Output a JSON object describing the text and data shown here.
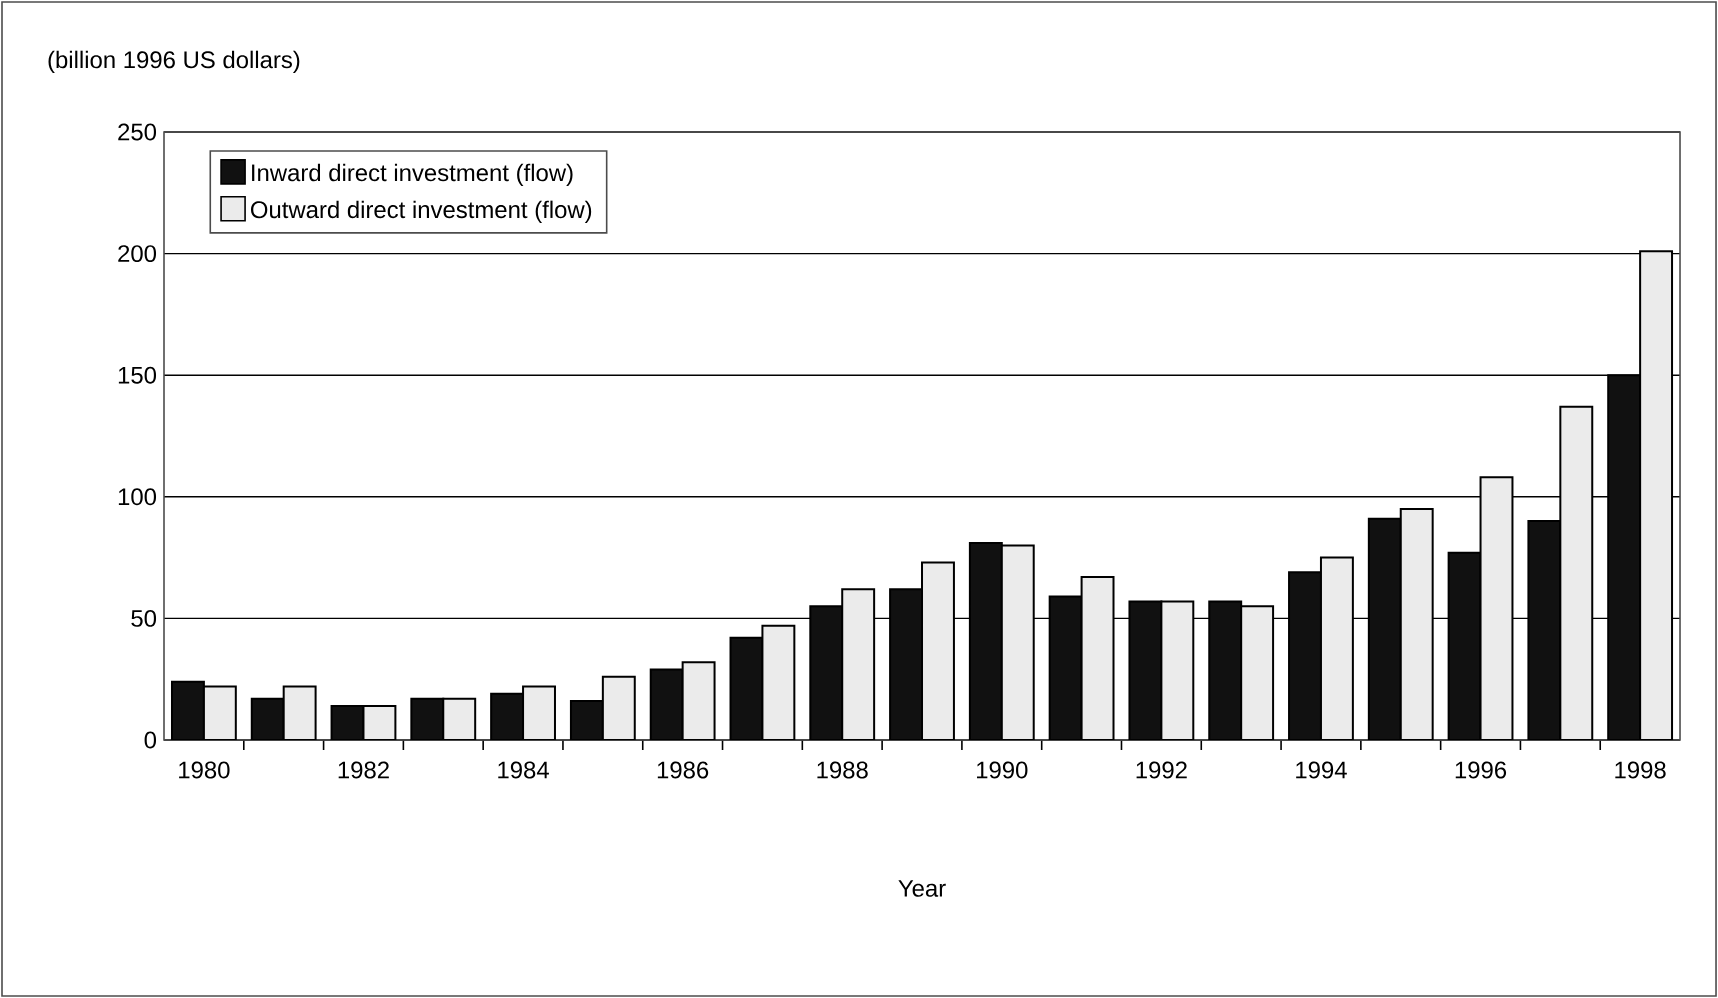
{
  "chart_data": {
    "type": "bar",
    "ylabel": "(billion 1996 US dollars)",
    "xlabel": "Year",
    "categories": [
      "1980",
      null,
      "1982",
      null,
      "1984",
      null,
      "1986",
      null,
      "1988",
      null,
      "1990",
      null,
      "1992",
      null,
      "1994",
      null,
      "1996",
      null,
      "1998"
    ],
    "series": [
      {
        "name": "Inward direct investment (flow)",
        "color": "#111111",
        "values": [
          24,
          17,
          14,
          17,
          19,
          16,
          29,
          42,
          55,
          62,
          81,
          59,
          57,
          57,
          69,
          91,
          77,
          90,
          150
        ]
      },
      {
        "name": "Outward direct investment (flow)",
        "color": "#ebebeb",
        "values": [
          22,
          22,
          14,
          17,
          22,
          26,
          32,
          47,
          62,
          73,
          80,
          67,
          57,
          55,
          75,
          95,
          108,
          137,
          201
        ]
      }
    ],
    "ylim": [
      0,
      250
    ],
    "yticks": [
      0,
      50,
      100,
      150,
      200,
      250
    ],
    "grid": "y",
    "legend": "top left"
  }
}
